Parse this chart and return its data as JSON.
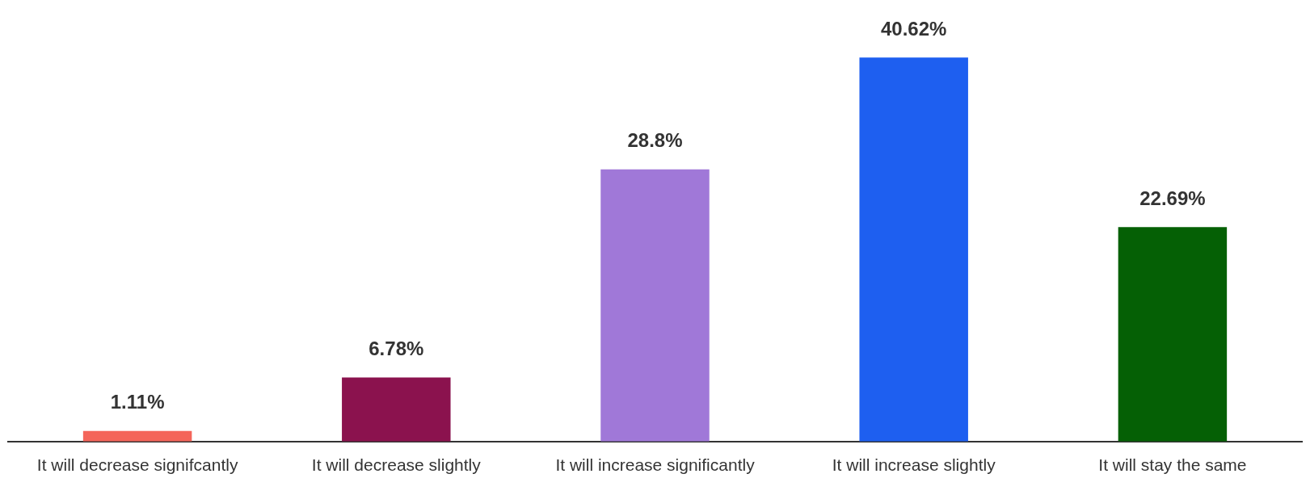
{
  "chart_data": {
    "type": "bar",
    "categories": [
      "It will decrease signifcantly",
      "It will decrease slightly",
      "It will increase significantly",
      "It will increase slightly",
      "It will stay the same"
    ],
    "values": [
      1.11,
      6.78,
      28.8,
      40.62,
      22.69
    ],
    "colors": [
      "#f4655a",
      "#8b124e",
      "#a078d8",
      "#1e5ff0",
      "#056005"
    ],
    "value_labels": [
      "1.11%",
      "6.78%",
      "28.8%",
      "40.62%",
      "22.69%"
    ],
    "grid": false,
    "legend": false
  }
}
